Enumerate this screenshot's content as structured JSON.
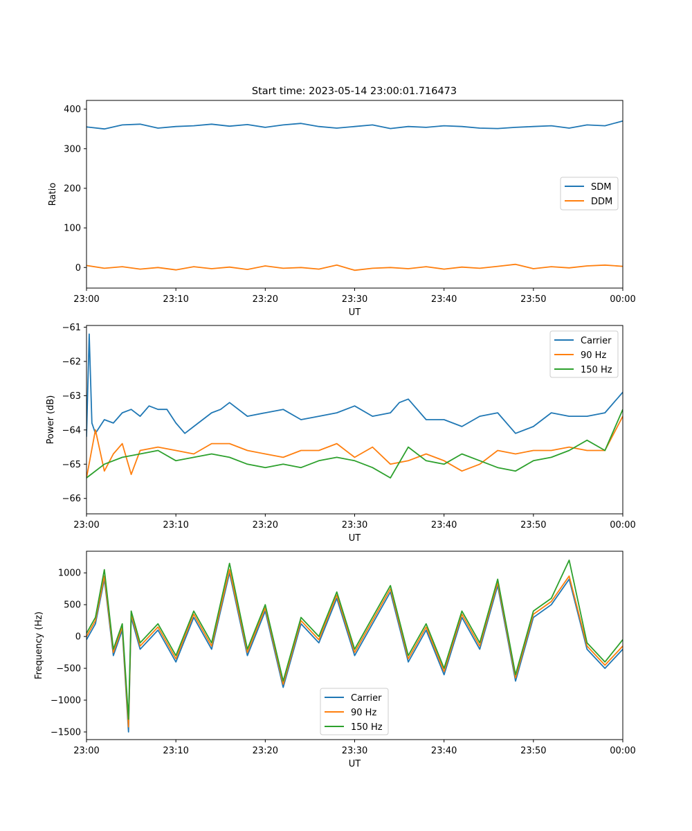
{
  "figure": {
    "title": "Start time: 2023-05-14 23:00:01.716473"
  },
  "chart_data": [
    {
      "type": "line",
      "xlabel": "UT",
      "ylabel": "Ratio",
      "xticks": [
        "23:00",
        "23:10",
        "23:20",
        "23:30",
        "23:40",
        "23:50",
        "00:00"
      ],
      "xlim_minutes": [
        0,
        60
      ],
      "ylim": [
        -52,
        422
      ],
      "yticks": [
        0,
        100,
        200,
        300,
        400
      ],
      "legend_position": "center-right",
      "series": [
        {
          "name": "SDM",
          "color": "#1f77b4",
          "x": [
            0,
            2,
            4,
            6,
            8,
            10,
            12,
            14,
            16,
            18,
            20,
            22,
            24,
            26,
            28,
            30,
            32,
            34,
            36,
            38,
            40,
            42,
            44,
            46,
            48,
            50,
            52,
            54,
            56,
            58,
            60
          ],
          "y": [
            355,
            350,
            360,
            362,
            352,
            356,
            358,
            362,
            357,
            361,
            354,
            360,
            364,
            356,
            352,
            356,
            360,
            351,
            356,
            354,
            358,
            356,
            352,
            351,
            354,
            356,
            358,
            352,
            360,
            358,
            370
          ]
        },
        {
          "name": "DDM",
          "color": "#ff7f0e",
          "x": [
            0,
            2,
            4,
            6,
            8,
            10,
            12,
            14,
            16,
            18,
            20,
            22,
            24,
            26,
            28,
            30,
            32,
            34,
            36,
            38,
            40,
            42,
            44,
            46,
            48,
            50,
            52,
            54,
            56,
            58,
            60
          ],
          "y": [
            5,
            -2,
            2,
            -4,
            0,
            -6,
            2,
            -3,
            1,
            -5,
            4,
            -2,
            0,
            -4,
            6,
            -7,
            -2,
            0,
            -3,
            2,
            -4,
            1,
            -2,
            3,
            8,
            -3,
            2,
            -1,
            4,
            6,
            3
          ]
        }
      ]
    },
    {
      "type": "line",
      "xlabel": "UT",
      "ylabel": "Power (dB)",
      "xticks": [
        "23:00",
        "23:10",
        "23:20",
        "23:30",
        "23:40",
        "23:50",
        "00:00"
      ],
      "xlim_minutes": [
        0,
        60
      ],
      "ylim": [
        -66.45,
        -60.95
      ],
      "yticks": [
        -66,
        -65,
        -64,
        -63,
        -62,
        -61
      ],
      "legend_position": "upper-right",
      "series": [
        {
          "name": "Carrier",
          "color": "#1f77b4",
          "x": [
            0,
            0.3,
            0.6,
            1,
            2,
            3,
            4,
            5,
            6,
            7,
            8,
            9,
            10,
            11,
            12,
            13,
            14,
            15,
            16,
            18,
            20,
            22,
            24,
            26,
            28,
            30,
            32,
            34,
            35,
            36,
            38,
            40,
            42,
            44,
            46,
            48,
            50,
            52,
            54,
            56,
            58,
            60
          ],
          "y": [
            -64.2,
            -61.2,
            -63.8,
            -64.1,
            -63.7,
            -63.8,
            -63.5,
            -63.4,
            -63.6,
            -63.3,
            -63.4,
            -63.4,
            -63.8,
            -64.1,
            -63.9,
            -63.7,
            -63.5,
            -63.4,
            -63.2,
            -63.6,
            -63.5,
            -63.4,
            -63.7,
            -63.6,
            -63.5,
            -63.3,
            -63.6,
            -63.5,
            -63.2,
            -63.1,
            -63.7,
            -63.7,
            -63.9,
            -63.6,
            -63.5,
            -64.1,
            -63.9,
            -63.5,
            -63.6,
            -63.6,
            -63.5,
            -62.9
          ]
        },
        {
          "name": "90 Hz",
          "color": "#ff7f0e",
          "x": [
            0,
            1,
            2,
            3,
            4,
            5,
            6,
            8,
            10,
            12,
            14,
            16,
            18,
            20,
            22,
            24,
            26,
            28,
            30,
            32,
            34,
            36,
            38,
            40,
            42,
            44,
            46,
            48,
            50,
            52,
            54,
            56,
            58,
            60
          ],
          "y": [
            -65.4,
            -64.0,
            -65.2,
            -64.7,
            -64.4,
            -65.3,
            -64.6,
            -64.5,
            -64.6,
            -64.7,
            -64.4,
            -64.4,
            -64.6,
            -64.7,
            -64.8,
            -64.6,
            -64.6,
            -64.4,
            -64.8,
            -64.5,
            -65.0,
            -64.9,
            -64.7,
            -64.9,
            -65.2,
            -65.0,
            -64.6,
            -64.7,
            -64.6,
            -64.6,
            -64.5,
            -64.6,
            -64.6,
            -63.6
          ]
        },
        {
          "name": "150 Hz",
          "color": "#2ca02c",
          "x": [
            0,
            2,
            4,
            6,
            8,
            10,
            12,
            14,
            16,
            18,
            20,
            22,
            24,
            26,
            28,
            30,
            32,
            34,
            36,
            38,
            40,
            42,
            44,
            46,
            48,
            50,
            52,
            54,
            56,
            58,
            60
          ],
          "y": [
            -65.4,
            -65.0,
            -64.8,
            -64.7,
            -64.6,
            -64.9,
            -64.8,
            -64.7,
            -64.8,
            -65.0,
            -65.1,
            -65.0,
            -65.1,
            -64.9,
            -64.8,
            -64.9,
            -65.1,
            -65.4,
            -64.5,
            -64.9,
            -65.0,
            -64.7,
            -64.9,
            -65.1,
            -65.2,
            -64.9,
            -64.8,
            -64.6,
            -64.3,
            -64.6,
            -63.4
          ]
        }
      ]
    },
    {
      "type": "line",
      "xlabel": "UT",
      "ylabel": "Frequency (Hz)",
      "xticks": [
        "23:00",
        "23:10",
        "23:20",
        "23:30",
        "23:40",
        "23:50",
        "00:00"
      ],
      "xlim_minutes": [
        0,
        60
      ],
      "ylim": [
        -1620,
        1340
      ],
      "yticks": [
        -1500,
        -1000,
        -500,
        0,
        500,
        1000
      ],
      "legend_position": "lower-center",
      "series": [
        {
          "name": "Carrier",
          "color": "#1f77b4",
          "x": [
            0,
            1,
            2,
            3,
            4,
            4.7,
            5,
            6,
            8,
            10,
            12,
            14,
            16,
            18,
            20,
            22,
            24,
            26,
            28,
            30,
            32,
            34,
            36,
            38,
            40,
            42,
            44,
            46,
            48,
            50,
            52,
            54,
            56,
            58,
            60
          ],
          "y": [
            -50,
            200,
            900,
            -300,
            100,
            -1500,
            300,
            -200,
            100,
            -400,
            300,
            -200,
            1000,
            -300,
            400,
            -800,
            200,
            -100,
            600,
            -300,
            200,
            700,
            -400,
            100,
            -600,
            300,
            -200,
            800,
            -700,
            300,
            500,
            900,
            -200,
            -500,
            -200
          ]
        },
        {
          "name": "90 Hz",
          "color": "#ff7f0e",
          "x": [
            0,
            1,
            2,
            3,
            4,
            4.7,
            5,
            6,
            8,
            10,
            12,
            14,
            16,
            18,
            20,
            22,
            24,
            26,
            28,
            30,
            32,
            34,
            36,
            38,
            40,
            42,
            44,
            46,
            48,
            50,
            52,
            54,
            56,
            58,
            60
          ],
          "y": [
            0,
            250,
            950,
            -250,
            150,
            -1420,
            350,
            -150,
            150,
            -350,
            350,
            -150,
            1050,
            -250,
            450,
            -750,
            250,
            -50,
            650,
            -250,
            250,
            750,
            -350,
            150,
            -550,
            350,
            -150,
            850,
            -650,
            350,
            550,
            950,
            -150,
            -450,
            -150
          ]
        },
        {
          "name": "150 Hz",
          "color": "#2ca02c",
          "x": [
            0,
            1,
            2,
            3,
            4,
            4.7,
            5,
            6,
            8,
            10,
            12,
            14,
            16,
            18,
            20,
            22,
            24,
            26,
            28,
            30,
            32,
            34,
            36,
            38,
            40,
            42,
            44,
            46,
            48,
            50,
            52,
            54,
            56,
            58,
            60
          ],
          "y": [
            50,
            300,
            1050,
            -200,
            200,
            -1300,
            400,
            -100,
            200,
            -300,
            400,
            -100,
            1150,
            -200,
            500,
            -700,
            300,
            0,
            700,
            -200,
            300,
            800,
            -300,
            200,
            -500,
            400,
            -100,
            900,
            -600,
            400,
            600,
            1200,
            -100,
            -400,
            -50
          ]
        }
      ]
    }
  ]
}
